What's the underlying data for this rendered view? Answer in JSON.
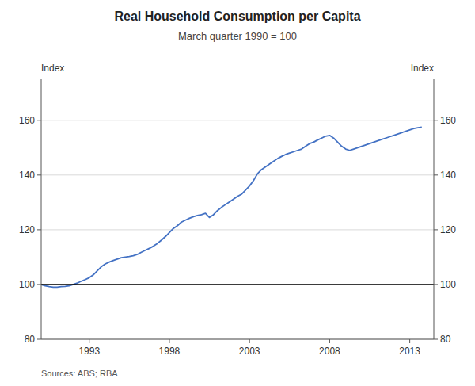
{
  "chart_data": {
    "type": "line",
    "title": "Real Household Consumption per Capita",
    "subtitle": "March quarter 1990 = 100",
    "ylabel": "Index",
    "y2label": "Index",
    "source": "Sources: ABS; RBA",
    "xlim": [
      1990.0,
      2014.5
    ],
    "ylim": [
      80,
      175
    ],
    "y2lim": [
      80,
      175
    ],
    "xticks": [
      1993,
      1998,
      2003,
      2008,
      2013
    ],
    "yticks": [
      80,
      100,
      120,
      140,
      160
    ],
    "y2ticks": [
      80,
      100,
      120,
      140,
      160
    ],
    "grid": true,
    "color": "#4472C4",
    "reference_line": {
      "value": 100,
      "color": "#000000"
    },
    "x": [
      1990.0,
      1990.25,
      1990.5,
      1990.75,
      1991.0,
      1991.25,
      1991.5,
      1991.75,
      1992.0,
      1992.25,
      1992.5,
      1992.75,
      1993.0,
      1993.25,
      1993.5,
      1993.75,
      1994.0,
      1994.25,
      1994.5,
      1994.75,
      1995.0,
      1995.25,
      1995.5,
      1995.75,
      1996.0,
      1996.25,
      1996.5,
      1996.75,
      1997.0,
      1997.25,
      1997.5,
      1997.75,
      1998.0,
      1998.25,
      1998.5,
      1998.75,
      1999.0,
      1999.25,
      1999.5,
      1999.75,
      2000.0,
      2000.25,
      2000.5,
      2000.75,
      2001.0,
      2001.25,
      2001.5,
      2001.75,
      2002.0,
      2002.25,
      2002.5,
      2002.75,
      2003.0,
      2003.25,
      2003.5,
      2003.75,
      2004.0,
      2004.25,
      2004.5,
      2004.75,
      2005.0,
      2005.25,
      2005.5,
      2005.75,
      2006.0,
      2006.25,
      2006.5,
      2006.75,
      2007.0,
      2007.25,
      2007.5,
      2007.75,
      2008.0,
      2008.25,
      2008.5,
      2008.75,
      2009.0,
      2009.25,
      2009.5,
      2009.75,
      2010.0,
      2010.25,
      2010.5,
      2010.75,
      2011.0,
      2011.25,
      2011.5,
      2011.75,
      2012.0,
      2012.25,
      2012.5,
      2012.75,
      2013.0,
      2013.25,
      2013.5,
      2013.75
    ],
    "values": [
      100.0,
      99.5,
      99.2,
      99.0,
      99.0,
      99.2,
      99.3,
      99.5,
      100.0,
      100.5,
      101.2,
      101.8,
      102.5,
      103.5,
      105.0,
      106.5,
      107.5,
      108.2,
      108.8,
      109.3,
      109.8,
      110.0,
      110.2,
      110.5,
      111.0,
      111.8,
      112.5,
      113.2,
      114.0,
      115.0,
      116.2,
      117.5,
      119.0,
      120.5,
      121.5,
      122.8,
      123.5,
      124.2,
      124.8,
      125.2,
      125.5,
      126.0,
      124.5,
      125.5,
      127.0,
      128.2,
      129.2,
      130.2,
      131.2,
      132.2,
      133.0,
      134.5,
      136.0,
      138.0,
      140.5,
      142.0,
      143.0,
      144.0,
      145.0,
      146.0,
      146.8,
      147.5,
      148.0,
      148.5,
      149.0,
      149.5,
      150.5,
      151.5,
      152.0,
      152.8,
      153.5,
      154.2,
      154.5,
      153.5,
      152.0,
      150.5,
      149.5,
      149.0,
      149.5,
      150.0,
      150.5,
      151.0,
      151.5,
      152.0,
      152.5,
      153.0,
      153.5,
      154.0,
      154.5,
      155.0,
      155.5,
      156.0,
      156.5,
      157.0,
      157.3,
      157.5
    ]
  }
}
